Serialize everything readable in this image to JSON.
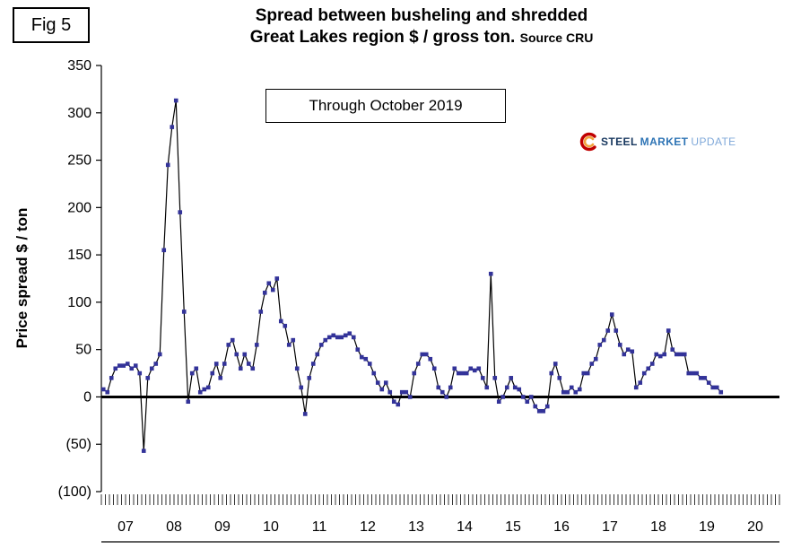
{
  "figure": {
    "label": "Fig 5"
  },
  "title": {
    "line1": "Spread between busheling and shredded",
    "line2": "Great Lakes region $ / gross ton.",
    "source": "Source CRU"
  },
  "annotation": {
    "through": "Through October 2019"
  },
  "logo": {
    "word1": "STEEL",
    "word2": "MARKET",
    "word3": "UPDATE"
  },
  "y_axis": {
    "title": "Price spread $ / ton"
  },
  "chart_data": {
    "type": "line",
    "title": "Spread between busheling and shredded - Great Lakes region $ / gross ton (Source CRU)",
    "xlabel": "",
    "ylabel": "Price spread $ / ton",
    "ylim": [
      -100,
      350
    ],
    "grid": false,
    "legend": "none",
    "x_start_month": "2007-01",
    "x_end_month": "2019-10",
    "x_year_labels": [
      "07",
      "08",
      "09",
      "10",
      "11",
      "12",
      "13",
      "14",
      "15",
      "16",
      "17",
      "18",
      "19",
      "20"
    ],
    "y_ticks": [
      {
        "value": 350,
        "label": "350"
      },
      {
        "value": 300,
        "label": "300"
      },
      {
        "value": 250,
        "label": "250"
      },
      {
        "value": 200,
        "label": "200"
      },
      {
        "value": 150,
        "label": "150"
      },
      {
        "value": 100,
        "label": "100"
      },
      {
        "value": 50,
        "label": "50"
      },
      {
        "value": 0,
        "label": "0"
      },
      {
        "value": -50,
        "label": "(50)"
      },
      {
        "value": -100,
        "label": "(100)"
      }
    ],
    "line_color": "#000000",
    "marker_color": "#333399",
    "series": [
      {
        "name": "Busheling minus shredded price spread (monthly)",
        "start": "2007-01",
        "values": [
          8,
          5,
          20,
          30,
          33,
          33,
          35,
          30,
          33,
          25,
          -57,
          20,
          30,
          35,
          45,
          155,
          245,
          285,
          313,
          195,
          90,
          -5,
          25,
          30,
          5,
          8,
          10,
          25,
          35,
          20,
          35,
          55,
          60,
          45,
          30,
          45,
          35,
          30,
          55,
          90,
          110,
          120,
          113,
          125,
          80,
          75,
          55,
          60,
          30,
          10,
          -18,
          20,
          35,
          45,
          55,
          60,
          63,
          65,
          63,
          63,
          65,
          67,
          63,
          50,
          42,
          40,
          35,
          25,
          15,
          8,
          15,
          5,
          -5,
          -8,
          5,
          5,
          0,
          25,
          35,
          45,
          45,
          40,
          30,
          10,
          5,
          0,
          10,
          30,
          25,
          25,
          25,
          30,
          28,
          30,
          20,
          10,
          130,
          20,
          -5,
          0,
          10,
          20,
          10,
          8,
          0,
          -5,
          0,
          -10,
          -15,
          -15,
          -10,
          25,
          35,
          20,
          5,
          5,
          10,
          5,
          8,
          25,
          25,
          35,
          40,
          55,
          60,
          70,
          87,
          70,
          55,
          45,
          50,
          48,
          10,
          15,
          25,
          30,
          35,
          45,
          43,
          45,
          70,
          50,
          45,
          45,
          45,
          25,
          25,
          25,
          20,
          20,
          15,
          10,
          10,
          5
        ]
      }
    ]
  }
}
